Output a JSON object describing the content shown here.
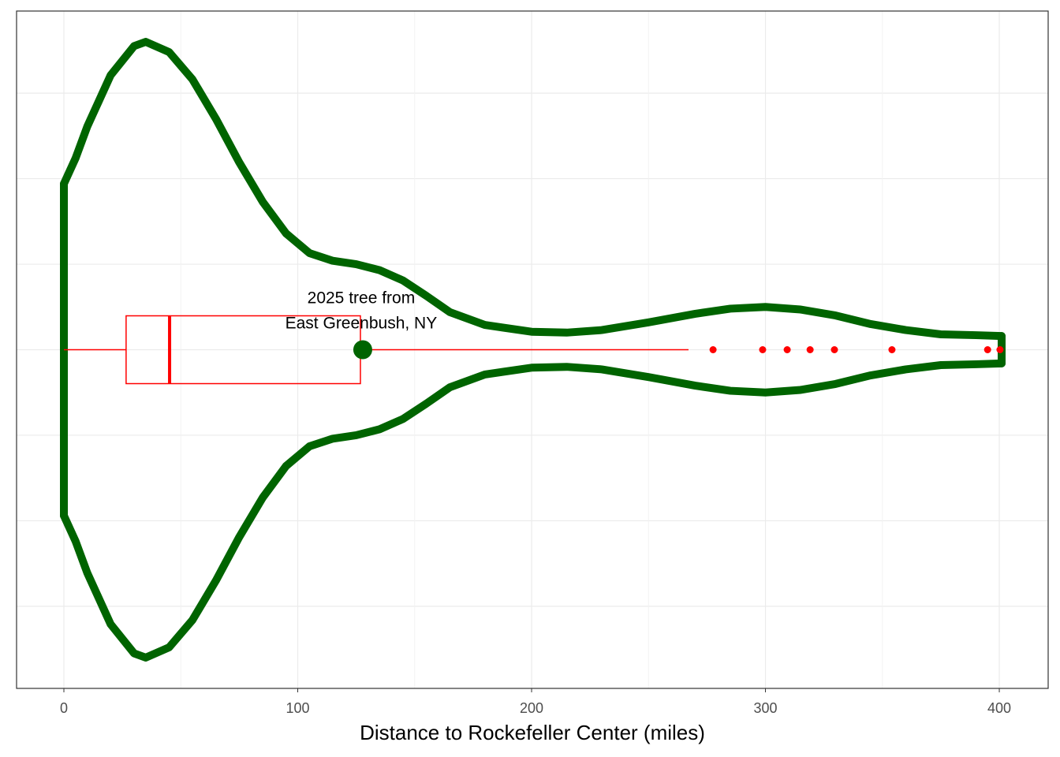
{
  "chart_data": {
    "type": "violin",
    "x_label": "Distance to Rockefeller Center (miles)",
    "xlim": [
      -20.24,
      420.9
    ],
    "xticks": [
      0,
      100,
      200,
      300,
      400
    ],
    "ylim": [
      -0.396,
      0.396
    ],
    "yticks": [
      -0.3,
      -0.2,
      -0.1,
      0,
      0.1,
      0.2,
      0.3
    ],
    "grid": true,
    "violin": {
      "color": "#006400",
      "x": [
        0,
        5,
        10,
        20,
        30,
        35,
        45,
        55,
        65,
        75,
        85,
        95,
        105,
        115,
        125,
        135,
        145,
        155,
        165,
        180,
        200,
        215,
        230,
        250,
        270,
        285,
        300,
        315,
        330,
        345,
        360,
        375,
        390,
        401
      ],
      "width": [
        0.194,
        0.224,
        0.261,
        0.321,
        0.355,
        0.36,
        0.348,
        0.316,
        0.27,
        0.219,
        0.173,
        0.136,
        0.113,
        0.104,
        0.1,
        0.093,
        0.081,
        0.063,
        0.044,
        0.029,
        0.021,
        0.02,
        0.023,
        0.032,
        0.042,
        0.048,
        0.05,
        0.047,
        0.04,
        0.03,
        0.023,
        0.018,
        0.017,
        0.016
      ]
    },
    "box": {
      "color": "#ff0000",
      "min": 0,
      "q1": 26.6,
      "median": 45.2,
      "q3": 126.8,
      "max": 267.1
    },
    "outliers": [
      277.6,
      298.8,
      309.3,
      319.1,
      329.5,
      354.1,
      395.0,
      400.3
    ],
    "highlight": {
      "x": 127.8,
      "color": "#006400",
      "label": [
        "2025 tree from",
        "East Greenbush, NY"
      ]
    }
  }
}
